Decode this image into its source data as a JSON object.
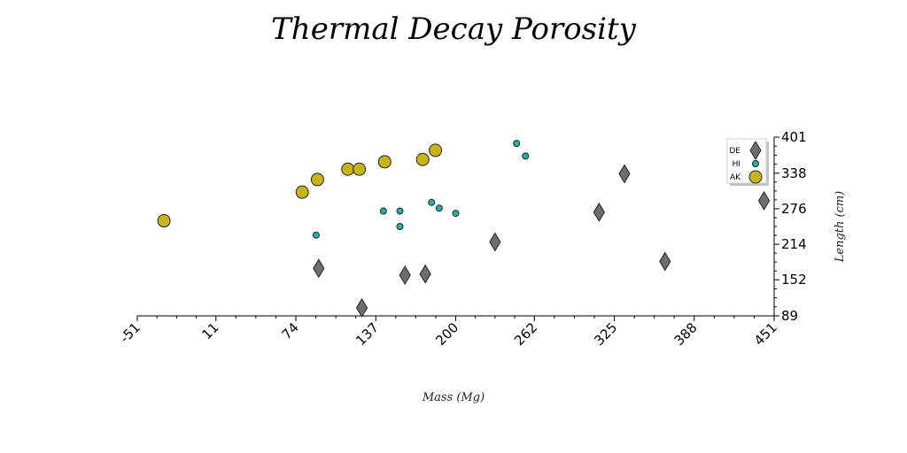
{
  "chart_data": {
    "type": "scatter",
    "title": "Thermal Decay Porosity",
    "xlabel": "Mass (Mg)",
    "ylabel": "Length (cm)",
    "xlim": [
      -51,
      451
    ],
    "ylim": [
      89,
      401
    ],
    "xticks": [
      -51,
      11,
      74,
      137,
      200,
      262,
      325,
      388,
      451
    ],
    "yticks": [
      89,
      152,
      214,
      276,
      338,
      401
    ],
    "grid": false,
    "legend_position": "top-right",
    "series": [
      {
        "name": "DE",
        "marker": "diamond",
        "color": "#6e6e6e",
        "points": [
          [
            92,
            172
          ],
          [
            126,
            103
          ],
          [
            160,
            160
          ],
          [
            176,
            162
          ],
          [
            231,
            218
          ],
          [
            313,
            270
          ],
          [
            333,
            337
          ],
          [
            365,
            184
          ],
          [
            443,
            290
          ]
        ]
      },
      {
        "name": "HI",
        "marker": "circle-small",
        "color": "#20b2aa",
        "points": [
          [
            90,
            230
          ],
          [
            143,
            272
          ],
          [
            156,
            272
          ],
          [
            156,
            245
          ],
          [
            181,
            287
          ],
          [
            187,
            277
          ],
          [
            200,
            268
          ],
          [
            248,
            390
          ],
          [
            255,
            368
          ]
        ]
      },
      {
        "name": "AK",
        "marker": "circle-large",
        "color": "#c8b416",
        "points": [
          [
            -30,
            255
          ],
          [
            79,
            305
          ],
          [
            91,
            327
          ],
          [
            115,
            345
          ],
          [
            124,
            345
          ],
          [
            144,
            358
          ],
          [
            174,
            362
          ],
          [
            184,
            378
          ]
        ]
      }
    ]
  }
}
